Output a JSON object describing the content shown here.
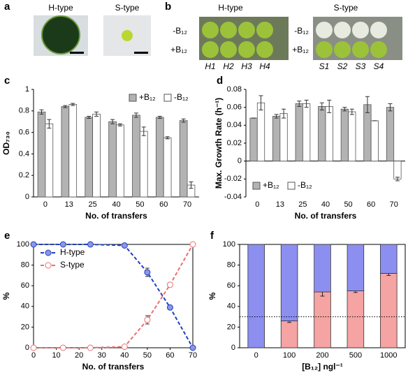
{
  "images": [
    {
      "panel": "a",
      "labels": [
        "H-type",
        "S-type"
      ]
    },
    {
      "panel": "b",
      "groups": [
        {
          "title": "H-type",
          "rows": [
            "-B₁₂",
            "+B₁₂"
          ],
          "wells": [
            "H1",
            "H2",
            "H3",
            "H4"
          ]
        },
        {
          "title": "S-type",
          "rows": [
            "-B₁₂",
            "+B₁₂"
          ],
          "wells": [
            "S1",
            "S2",
            "S3",
            "S4"
          ]
        }
      ]
    }
  ],
  "chart_data": [
    {
      "type": "bar",
      "panel": "c",
      "ylabel": "OD₇₃₀",
      "xlabel": "No. of transfers",
      "categories": [
        "0",
        "13",
        "25",
        "40",
        "50",
        "60",
        "70"
      ],
      "series": [
        {
          "name": "+B₁₂",
          "color": "#b3b3b3",
          "values": [
            0.79,
            0.84,
            0.74,
            0.7,
            0.76,
            0.74,
            0.71
          ],
          "errors": [
            0.02,
            0.01,
            0.01,
            0.02,
            0.02,
            0.01,
            0.015
          ]
        },
        {
          "name": "-B₁₂",
          "color": "#ffffff",
          "values": [
            0.68,
            0.86,
            0.77,
            0.67,
            0.61,
            0.55,
            0.11
          ],
          "errors": [
            0.04,
            0.01,
            0.02,
            0.01,
            0.04,
            0.01,
            0.03
          ]
        }
      ],
      "ylim": [
        0,
        1
      ],
      "yticks": [
        0,
        0.2,
        0.4,
        0.6,
        0.8,
        1
      ],
      "legend": "upper right"
    },
    {
      "type": "bar",
      "panel": "d",
      "ylabel": "Max. Growth Rate (h⁻¹)",
      "xlabel": "No. of transfers",
      "categories": [
        "0",
        "13",
        "25",
        "40",
        "50",
        "60",
        "70"
      ],
      "series": [
        {
          "name": "+B₁₂",
          "color": "#b3b3b3",
          "values": [
            0.048,
            0.05,
            0.064,
            0.061,
            0.058,
            0.063,
            0.06
          ],
          "errors": [
            0,
            0.002,
            0.003,
            0.004,
            0.002,
            0.009,
            0.004
          ]
        },
        {
          "name": "-B₁₂",
          "color": "#ffffff",
          "values": [
            0.065,
            0.053,
            0.064,
            0.061,
            0.055,
            0.045,
            -0.02
          ],
          "errors": [
            0.008,
            0.005,
            0.004,
            0.007,
            0.003,
            0,
            0.002
          ]
        }
      ],
      "ylim": [
        -0.04,
        0.08
      ],
      "yticks": [
        -0.04,
        -0.02,
        0,
        0.02,
        0.04,
        0.06,
        0.08
      ],
      "legend": "lower left"
    },
    {
      "type": "line",
      "panel": "e",
      "ylabel": "%",
      "xlabel": "No. of transfers",
      "x": [
        0,
        13,
        25,
        40,
        50,
        60,
        70
      ],
      "series": [
        {
          "name": "H-type",
          "color": "#1f3fbf",
          "marker_fill": "#8c96e8",
          "values": [
            100,
            100,
            100,
            99,
            73,
            39,
            0
          ],
          "errors": [
            0,
            0,
            0,
            0,
            4,
            2,
            0
          ]
        },
        {
          "name": "S-type",
          "color": "#e8706f",
          "marker_fill": "#ffffff",
          "values": [
            0,
            0,
            0,
            1,
            27,
            61,
            100
          ],
          "errors": [
            0,
            0,
            0,
            0,
            4,
            2,
            0
          ]
        }
      ],
      "xlim": [
        0,
        70
      ],
      "xticks": [
        0,
        10,
        20,
        30,
        40,
        50,
        60,
        70
      ],
      "ylim": [
        0,
        100
      ],
      "yticks": [
        0,
        20,
        40,
        60,
        80,
        100
      ],
      "legend": "upper left"
    },
    {
      "type": "stacked_bar",
      "panel": "f",
      "ylabel": "%",
      "xlabel": "[B₁₂] ngl⁻¹",
      "categories": [
        "0",
        "100",
        "200",
        "500",
        "1000"
      ],
      "series": [
        {
          "name": "S-type",
          "color": "#f5a3a3",
          "values": [
            0,
            26,
            54,
            55,
            72
          ],
          "errors": [
            0,
            1.5,
            4,
            1.5,
            2
          ]
        },
        {
          "name": "H-type",
          "color": "#8c8ff0",
          "values": [
            100,
            74,
            46,
            45,
            28
          ]
        }
      ],
      "ylim": [
        0,
        100
      ],
      "yticks": [
        0,
        20,
        40,
        60,
        80,
        100
      ],
      "reference_line": 30
    }
  ]
}
